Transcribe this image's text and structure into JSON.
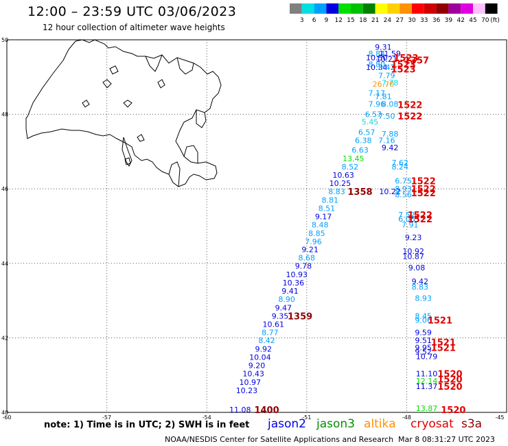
{
  "header": {
    "title": "12:00 – 23:59 UTC 03/06/2023",
    "subtitle": "12 hour collection of altimeter wave heights"
  },
  "color_scale": {
    "unit": "(ft)",
    "bins": [
      {
        "label": "3",
        "color": "#808080"
      },
      {
        "label": "6",
        "color": "#00e0e0"
      },
      {
        "label": "9",
        "color": "#00a0ff"
      },
      {
        "label": "12",
        "color": "#0000e0"
      },
      {
        "label": "15",
        "color": "#00e000"
      },
      {
        "label": "18",
        "color": "#00c000"
      },
      {
        "label": "21",
        "color": "#008000"
      },
      {
        "label": "24",
        "color": "#ffff00"
      },
      {
        "label": "27",
        "color": "#ffd000"
      },
      {
        "label": "30",
        "color": "#ff9000"
      },
      {
        "label": "33",
        "color": "#ff0000"
      },
      {
        "label": "36",
        "color": "#d00000"
      },
      {
        "label": "39",
        "color": "#900000"
      },
      {
        "label": "42",
        "color": "#a000a0"
      },
      {
        "label": "45",
        "color": "#e000e0"
      },
      {
        "label": "70",
        "color": "#ffc0ff"
      },
      {
        "label": "",
        "color": "#000000"
      }
    ]
  },
  "map": {
    "lon_ticks": [
      "-60",
      "-57",
      "-54",
      "-51",
      "-48",
      "-45"
    ],
    "lat_ticks": [
      "50",
      "48",
      "46",
      "44",
      "42",
      "40"
    ],
    "wave_heights": [
      {
        "text": "9.31",
        "color": "#0000e0",
        "lon": -48.7,
        "lat": 49.81
      },
      {
        "text": "8.84",
        "color": "#00a0ff",
        "lon": -48.9,
        "lat": 49.63
      },
      {
        "text": "11.59",
        "color": "#0000e0",
        "lon": -48.5,
        "lat": 49.63
      },
      {
        "text": "10.50",
        "color": "#0000e0",
        "lon": -48.9,
        "lat": 49.52
      },
      {
        "text": "10.21",
        "color": "#0000e0",
        "lon": -48.6,
        "lat": 49.48
      },
      {
        "text": "8.80",
        "color": "#00a0ff",
        "lon": -48.9,
        "lat": 49.35
      },
      {
        "text": "10.34",
        "color": "#0000e0",
        "lon": -48.9,
        "lat": 49.26
      },
      {
        "text": "8.42",
        "color": "#00a0ff",
        "lon": -48.6,
        "lat": 49.26
      },
      {
        "text": "7.79",
        "color": "#00a0ff",
        "lon": -48.6,
        "lat": 49.04
      },
      {
        "text": "26.70",
        "color": "#ff9000",
        "lon": -48.7,
        "lat": 48.81
      },
      {
        "text": "7.78",
        "color": "#00e0e0",
        "lon": -48.5,
        "lat": 48.85
      },
      {
        "text": "7.17",
        "color": "#00a0ff",
        "lon": -48.9,
        "lat": 48.57
      },
      {
        "text": "7.81",
        "color": "#00a0ff",
        "lon": -48.7,
        "lat": 48.48
      },
      {
        "text": "7.96",
        "color": "#00a0ff",
        "lon": -48.9,
        "lat": 48.28
      },
      {
        "text": "8.08",
        "color": "#00a0ff",
        "lon": -48.5,
        "lat": 48.28
      },
      {
        "text": "6.57",
        "color": "#00a0ff",
        "lon": -49.0,
        "lat": 48.0
      },
      {
        "text": "7.50",
        "color": "#00a0ff",
        "lon": -48.6,
        "lat": 47.96
      },
      {
        "text": "5.45",
        "color": "#00e0e0",
        "lon": -49.1,
        "lat": 47.8
      },
      {
        "text": "6.57",
        "color": "#00a0ff",
        "lon": -49.2,
        "lat": 47.52
      },
      {
        "text": "7.88",
        "color": "#00a0ff",
        "lon": -48.5,
        "lat": 47.48
      },
      {
        "text": "6.38",
        "color": "#00a0ff",
        "lon": -49.3,
        "lat": 47.3
      },
      {
        "text": "7.16",
        "color": "#00a0ff",
        "lon": -48.6,
        "lat": 47.3
      },
      {
        "text": "6.63",
        "color": "#00a0ff",
        "lon": -49.4,
        "lat": 47.04
      },
      {
        "text": "9.42",
        "color": "#0000e0",
        "lon": -48.5,
        "lat": 47.11
      },
      {
        "text": "13.45",
        "color": "#00e000",
        "lon": -49.6,
        "lat": 46.81
      },
      {
        "text": "7.62",
        "color": "#00a0ff",
        "lon": -48.2,
        "lat": 46.7
      },
      {
        "text": "8.52",
        "color": "#00a0ff",
        "lon": -49.7,
        "lat": 46.59
      },
      {
        "text": "8.24",
        "color": "#00a0ff",
        "lon": -48.2,
        "lat": 46.59
      },
      {
        "text": "10.63",
        "color": "#0000e0",
        "lon": -49.9,
        "lat": 46.37
      },
      {
        "text": "6.75",
        "color": "#00a0ff",
        "lon": -48.1,
        "lat": 46.22
      },
      {
        "text": "10.25",
        "color": "#0000e0",
        "lon": -50.0,
        "lat": 46.15
      },
      {
        "text": "8.93",
        "color": "#00a0ff",
        "lon": -48.1,
        "lat": 46.0
      },
      {
        "text": "8.83",
        "color": "#00a0ff",
        "lon": -50.1,
        "lat": 45.93
      },
      {
        "text": "10.22",
        "color": "#0000e0",
        "lon": -48.5,
        "lat": 45.93
      },
      {
        "text": "8.56",
        "color": "#00a0ff",
        "lon": -48.1,
        "lat": 45.85
      },
      {
        "text": "8.81",
        "color": "#00a0ff",
        "lon": -50.3,
        "lat": 45.7
      },
      {
        "text": "8.51",
        "color": "#00a0ff",
        "lon": -50.4,
        "lat": 45.48
      },
      {
        "text": "7.52",
        "color": "#00a0ff",
        "lon": -48.0,
        "lat": 45.3
      },
      {
        "text": "9.17",
        "color": "#0000e0",
        "lon": -50.5,
        "lat": 45.26
      },
      {
        "text": "6.06",
        "color": "#00a0ff",
        "lon": -48.0,
        "lat": 45.19
      },
      {
        "text": "8.48",
        "color": "#00a0ff",
        "lon": -50.6,
        "lat": 45.04
      },
      {
        "text": "7.91",
        "color": "#00a0ff",
        "lon": -47.9,
        "lat": 45.04
      },
      {
        "text": "8.85",
        "color": "#00a0ff",
        "lon": -50.7,
        "lat": 44.81
      },
      {
        "text": "9.23",
        "color": "#0000e0",
        "lon": -47.8,
        "lat": 44.7
      },
      {
        "text": "7.96",
        "color": "#00a0ff",
        "lon": -50.8,
        "lat": 44.59
      },
      {
        "text": "9.21",
        "color": "#0000e0",
        "lon": -50.9,
        "lat": 44.37
      },
      {
        "text": "10.92",
        "color": "#0000e0",
        "lon": -47.8,
        "lat": 44.33
      },
      {
        "text": "8.68",
        "color": "#00a0ff",
        "lon": -51.0,
        "lat": 44.15
      },
      {
        "text": "10.87",
        "color": "#0000e0",
        "lon": -47.8,
        "lat": 44.19
      },
      {
        "text": "9.78",
        "color": "#0000e0",
        "lon": -51.1,
        "lat": 43.93
      },
      {
        "text": "9.08",
        "color": "#0000e0",
        "lon": -47.7,
        "lat": 43.89
      },
      {
        "text": "10.93",
        "color": "#0000e0",
        "lon": -51.3,
        "lat": 43.7
      },
      {
        "text": "10.36",
        "color": "#0000e0",
        "lon": -51.4,
        "lat": 43.48
      },
      {
        "text": "9.42",
        "color": "#0000e0",
        "lon": -47.6,
        "lat": 43.52
      },
      {
        "text": "9.41",
        "color": "#0000e0",
        "lon": -51.5,
        "lat": 43.26
      },
      {
        "text": "8.83",
        "color": "#00a0ff",
        "lon": -47.6,
        "lat": 43.37
      },
      {
        "text": "8.90",
        "color": "#00a0ff",
        "lon": -51.6,
        "lat": 43.04
      },
      {
        "text": "8.93",
        "color": "#00a0ff",
        "lon": -47.5,
        "lat": 43.07
      },
      {
        "text": "9.47",
        "color": "#0000e0",
        "lon": -51.7,
        "lat": 42.81
      },
      {
        "text": "9.35",
        "color": "#0000e0",
        "lon": -51.8,
        "lat": 42.59
      },
      {
        "text": "8.45",
        "color": "#00a0ff",
        "lon": -47.5,
        "lat": 42.59
      },
      {
        "text": "9.06",
        "color": "#00a0ff",
        "lon": -47.5,
        "lat": 42.48
      },
      {
        "text": "10.61",
        "color": "#0000e0",
        "lon": -52.0,
        "lat": 42.37
      },
      {
        "text": "9.59",
        "color": "#0000e0",
        "lon": -47.5,
        "lat": 42.15
      },
      {
        "text": "8.77",
        "color": "#00a0ff",
        "lon": -52.1,
        "lat": 42.15
      },
      {
        "text": "8.42",
        "color": "#00a0ff",
        "lon": -52.2,
        "lat": 41.93
      },
      {
        "text": "9.51",
        "color": "#0000e0",
        "lon": -47.5,
        "lat": 41.93
      },
      {
        "text": "9.92",
        "color": "#0000e0",
        "lon": -52.3,
        "lat": 41.7
      },
      {
        "text": "9.95",
        "color": "#0000e0",
        "lon": -47.5,
        "lat": 41.74
      },
      {
        "text": "9.52",
        "color": "#0000e0",
        "lon": -47.5,
        "lat": 41.63
      },
      {
        "text": "10.04",
        "color": "#0000e0",
        "lon": -52.4,
        "lat": 41.48
      },
      {
        "text": "10.79",
        "color": "#0000e0",
        "lon": -47.4,
        "lat": 41.5
      },
      {
        "text": "9.20",
        "color": "#0000e0",
        "lon": -52.5,
        "lat": 41.26
      },
      {
        "text": "10.43",
        "color": "#0000e0",
        "lon": -52.6,
        "lat": 41.04
      },
      {
        "text": "11.10",
        "color": "#0000e0",
        "lon": -47.4,
        "lat": 41.04
      },
      {
        "text": "12.14",
        "color": "#00e000",
        "lon": -47.4,
        "lat": 40.85
      },
      {
        "text": "10.97",
        "color": "#0000e0",
        "lon": -52.7,
        "lat": 40.81
      },
      {
        "text": "11.37",
        "color": "#0000e0",
        "lon": -47.4,
        "lat": 40.7
      },
      {
        "text": "10.23",
        "color": "#0000e0",
        "lon": -52.8,
        "lat": 40.59
      },
      {
        "text": "13.87",
        "color": "#00e000",
        "lon": -47.4,
        "lat": 40.11
      },
      {
        "text": "11.08",
        "color": "#0000e0",
        "lon": -53.0,
        "lat": 40.07
      }
    ],
    "pass_times": [
      {
        "text": "1523",
        "color": "#e00000",
        "lon": -48.02,
        "lat": 49.52
      },
      {
        "text": "1357",
        "color": "#e00000",
        "lon": -47.7,
        "lat": 49.46
      },
      {
        "text": "1523",
        "color": "#e00000",
        "lon": -48.1,
        "lat": 49.35
      },
      {
        "text": "1523",
        "color": "#e00000",
        "lon": -48.1,
        "lat": 49.22
      },
      {
        "text": "1522",
        "color": "#e00000",
        "lon": -47.9,
        "lat": 48.26
      },
      {
        "text": "1522",
        "color": "#e00000",
        "lon": -47.9,
        "lat": 47.96
      },
      {
        "text": "1522",
        "color": "#e00000",
        "lon": -47.5,
        "lat": 46.22
      },
      {
        "text": "1522",
        "color": "#e00000",
        "lon": -47.5,
        "lat": 46.0
      },
      {
        "text": "1522",
        "color": "#e00000",
        "lon": -47.5,
        "lat": 45.89
      },
      {
        "text": "1358",
        "color": "#900000",
        "lon": -49.4,
        "lat": 45.93
      },
      {
        "text": "1522",
        "color": "#e00000",
        "lon": -47.6,
        "lat": 45.3
      },
      {
        "text": "1522",
        "color": "#e00000",
        "lon": -47.6,
        "lat": 45.19
      },
      {
        "text": "1359",
        "color": "#900000",
        "lon": -51.2,
        "lat": 42.59
      },
      {
        "text": "1521",
        "color": "#e00000",
        "lon": -47.0,
        "lat": 42.48
      },
      {
        "text": "1521",
        "color": "#e00000",
        "lon": -46.9,
        "lat": 41.89
      },
      {
        "text": "1521",
        "color": "#e00000",
        "lon": -46.9,
        "lat": 41.74
      },
      {
        "text": "1520",
        "color": "#e00000",
        "lon": -46.7,
        "lat": 41.04
      },
      {
        "text": "1520",
        "color": "#e00000",
        "lon": -46.7,
        "lat": 40.89
      },
      {
        "text": "1520",
        "color": "#e00000",
        "lon": -46.7,
        "lat": 40.7
      },
      {
        "text": "1520",
        "color": "#e00000",
        "lon": -46.6,
        "lat": 40.07
      },
      {
        "text": "1400",
        "color": "#900000",
        "lon": -52.2,
        "lat": 40.07
      }
    ]
  },
  "footer": {
    "note": "note:  1) Time is in UTC;  2) SWH is in feet",
    "satellites": [
      {
        "name": "jason2",
        "color": "#0000e0"
      },
      {
        "name": "jason3",
        "color": "#009000"
      },
      {
        "name": "altika",
        "color": "#ff9000"
      },
      {
        "name": "cryosat",
        "color": "#e00000"
      },
      {
        "name": "s3a",
        "color": "#900000"
      }
    ],
    "credit": "NOAA/NESDIS Center for Satellite Applications and Research",
    "run_time": "Mar  8 08:31:27 UTC 2023"
  }
}
